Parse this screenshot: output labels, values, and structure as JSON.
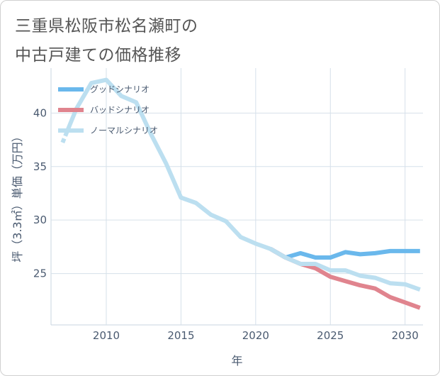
{
  "title": [
    "三重県松阪市松名瀬町の",
    "中古戸建ての価格推移"
  ],
  "chart_data": {
    "type": "line",
    "xlabel": "年",
    "ylabel": "坪（3.3㎡）単価（万円）",
    "xlim": [
      2006.3,
      2031.2
    ],
    "ylim": [
      20.2,
      44.2
    ],
    "x_ticks": [
      2010,
      2015,
      2020,
      2025,
      2030
    ],
    "y_ticks": [
      25,
      30,
      35,
      40
    ],
    "grid": true,
    "legend_position": "top-left",
    "series": [
      {
        "name": "グッドシナリオ",
        "color": "#6ab8ec",
        "x": [
          2021,
          2022,
          2023,
          2024,
          2025,
          2026,
          2027,
          2028,
          2029,
          2030,
          2031
        ],
        "y": [
          27.3,
          26.5,
          26.9,
          26.5,
          26.5,
          27.0,
          26.8,
          26.9,
          27.1,
          27.1,
          27.1
        ]
      },
      {
        "name": "バッドシナリオ",
        "color": "#e0848e",
        "x": [
          2021,
          2022,
          2023,
          2024,
          2025,
          2026,
          2027,
          2028,
          2029,
          2030,
          2031
        ],
        "y": [
          27.3,
          26.5,
          25.9,
          25.5,
          24.7,
          24.3,
          23.9,
          23.6,
          22.8,
          22.3,
          21.8
        ]
      },
      {
        "name": "ノーマルシナリオ",
        "color": "#bcdff0",
        "x": [
          2007,
          2008,
          2009,
          2010,
          2011,
          2012,
          2013,
          2014,
          2015,
          2016,
          2017,
          2018,
          2019,
          2020,
          2021,
          2022,
          2023,
          2024,
          2025,
          2026,
          2027,
          2028,
          2029,
          2030,
          2031
        ],
        "y": [
          37.0,
          40.4,
          42.8,
          43.1,
          41.6,
          41.0,
          38.0,
          35.3,
          32.1,
          31.6,
          30.5,
          29.9,
          28.4,
          27.8,
          27.3,
          26.5,
          25.9,
          25.9,
          25.3,
          25.3,
          24.8,
          24.6,
          24.1,
          24.0,
          23.5
        ]
      }
    ]
  }
}
